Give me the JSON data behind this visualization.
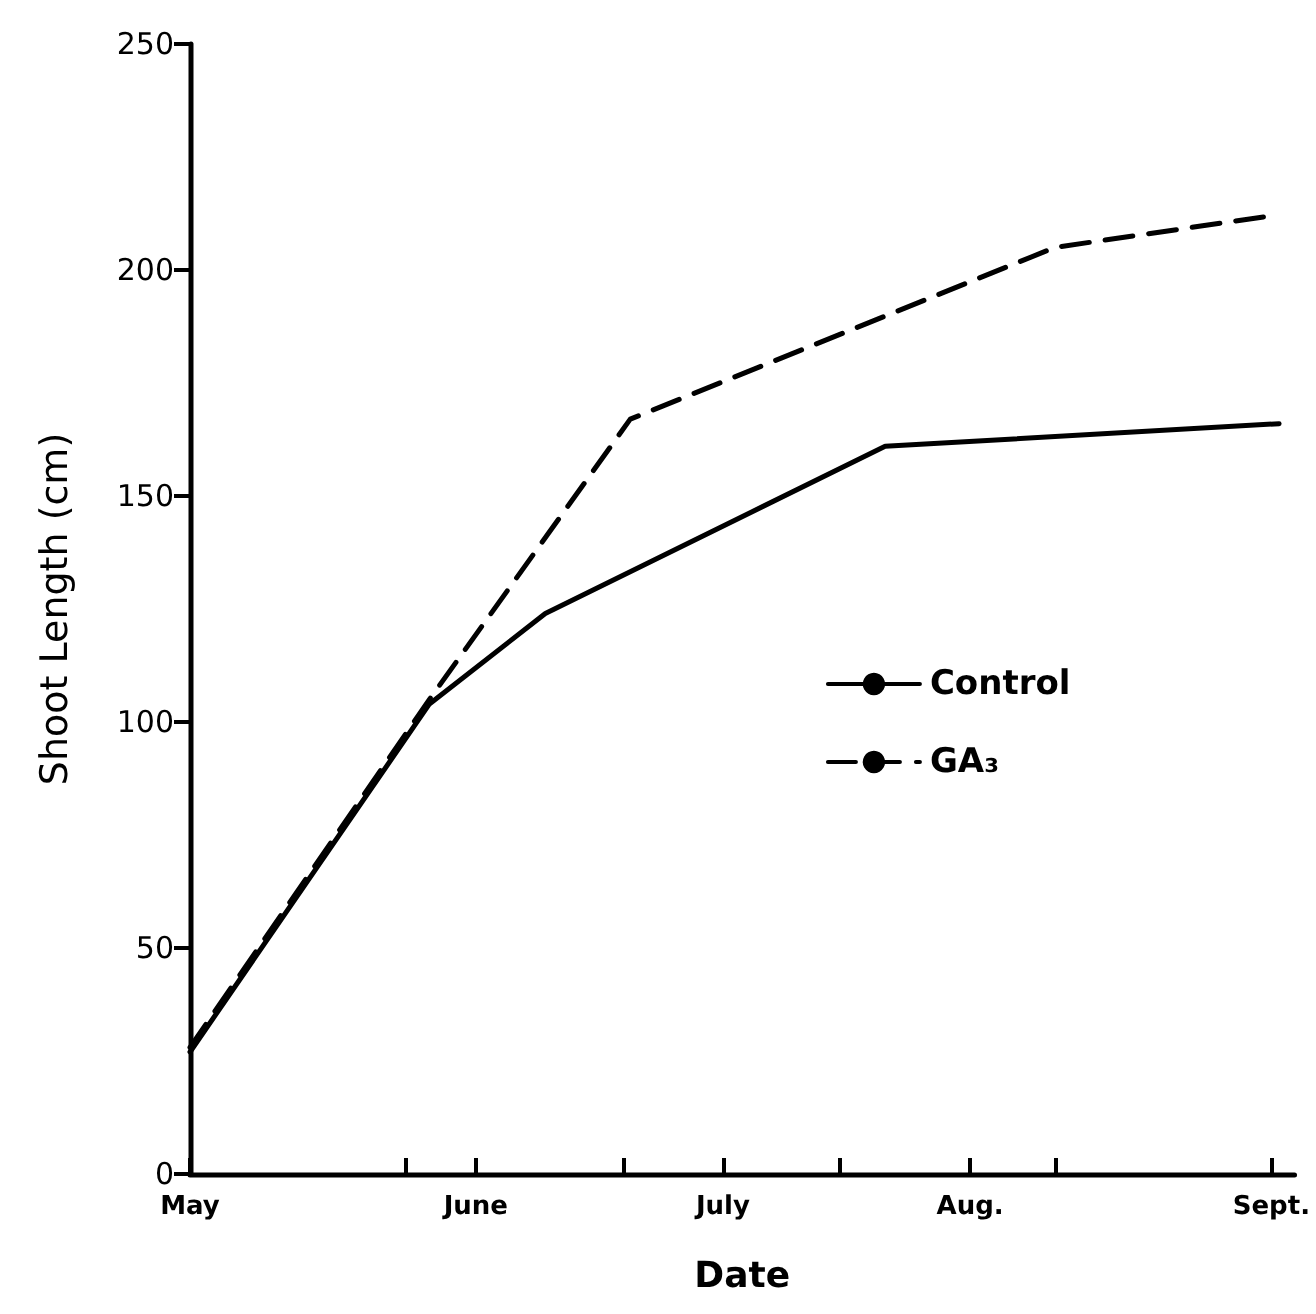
{
  "chart_data": {
    "type": "line",
    "xlabel": "Date",
    "ylabel": "Shoot Length (cm)",
    "xlim": [
      "--05-01",
      "--09-21"
    ],
    "xticks": [
      {
        "value": "--05-01",
        "label": "May"
      },
      {
        "value": "--05-29",
        "label": null
      },
      {
        "value": "--06-07",
        "label": "June"
      },
      {
        "value": "--06-26",
        "label": null
      },
      {
        "value": "--07-09",
        "label": "July"
      },
      {
        "value": "--07-24",
        "label": null
      },
      {
        "value": "--08-10",
        "label": "Aug."
      },
      {
        "value": "--08-21",
        "label": null
      },
      {
        "value": "--09-18",
        "label": "Sept."
      }
    ],
    "ylim": [
      0,
      250
    ],
    "yticks": [
      0,
      50,
      100,
      150,
      200,
      250
    ],
    "series": [
      {
        "name": "Control",
        "color": "#000000",
        "line_style": "solid",
        "x": [
          "--05-01",
          "--06-01",
          "--06-16",
          "--07-30",
          "--09-19"
        ],
        "values": [
          27,
          104,
          124,
          161,
          166
        ]
      },
      {
        "name": "GA₃",
        "color": "#000000",
        "line_style": "dashed",
        "x": [
          "--05-01",
          "--06-01",
          "--06-27",
          "--08-21",
          "--09-18"
        ],
        "values": [
          28,
          105,
          167,
          205,
          212
        ]
      }
    ],
    "legend": "right",
    "grid": false,
    "marker": "none"
  }
}
